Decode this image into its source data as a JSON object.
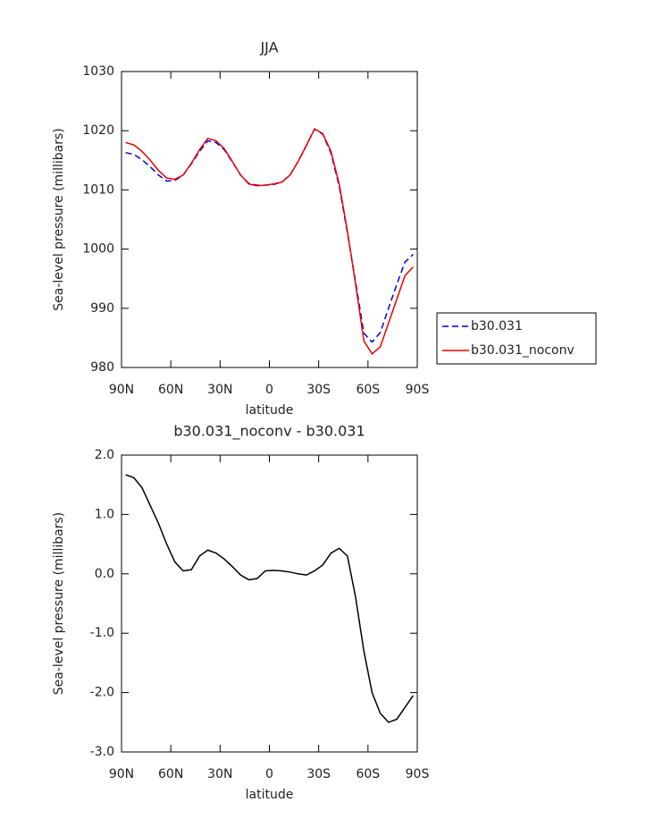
{
  "chart_data": [
    {
      "type": "line",
      "title": "JJA",
      "xlabel": "latitude",
      "ylabel": "Sea-level pressure (millibars)",
      "xlim": [
        90,
        -90
      ],
      "xticks": [
        {
          "value": 90,
          "label": "90N"
        },
        {
          "value": 60,
          "label": "60N"
        },
        {
          "value": 30,
          "label": "30N"
        },
        0,
        {
          "value": -30,
          "label": "30S"
        },
        {
          "value": -60,
          "label": "60S"
        },
        {
          "value": -90,
          "label": "90S"
        }
      ],
      "ylim": [
        980,
        1030
      ],
      "yticks": [
        980,
        990,
        1000,
        1010,
        1020,
        1030
      ],
      "x": [
        87.5,
        82.5,
        77.5,
        72.5,
        67.5,
        62.5,
        57.5,
        52.5,
        47.5,
        42.5,
        37.5,
        32.5,
        27.5,
        22.5,
        17.5,
        12.5,
        7.5,
        2.5,
        -2.5,
        -7.5,
        -12.5,
        -17.5,
        -22.5,
        -27.5,
        -32.5,
        -37.5,
        -42.5,
        -47.5,
        -52.5,
        -57.5,
        -62.5,
        -67.5,
        -72.5,
        -77.5,
        -82.5,
        -87.5
      ],
      "legend": "right",
      "series": [
        {
          "name": "b30.031",
          "color": "#0000dd",
          "dash": true,
          "values": [
            1016.3,
            1016.0,
            1015.1,
            1013.9,
            1012.5,
            1011.5,
            1011.6,
            1012.5,
            1014.4,
            1016.5,
            1018.3,
            1018.0,
            1016.8,
            1014.7,
            1012.5,
            1011.1,
            1010.8,
            1010.8,
            1010.9,
            1011.3,
            1012.5,
            1014.8,
            1017.5,
            1020.3,
            1019.4,
            1016.2,
            1010.6,
            1002.7,
            994.4,
            985.8,
            984.3,
            985.9,
            990.0,
            994.0,
            997.8,
            999.1
          ]
        },
        {
          "name": "b30.031_noconv",
          "color": "#ee0000",
          "dash": false,
          "values": [
            1018.0,
            1017.6,
            1016.5,
            1015.0,
            1013.3,
            1012.0,
            1011.8,
            1012.5,
            1014.5,
            1016.8,
            1018.7,
            1018.3,
            1017.0,
            1014.8,
            1012.5,
            1011.0,
            1010.7,
            1010.8,
            1011.0,
            1011.3,
            1012.5,
            1014.8,
            1017.5,
            1020.3,
            1019.5,
            1016.5,
            1011.0,
            1003.0,
            994.0,
            984.5,
            982.3,
            983.5,
            987.5,
            991.5,
            995.5,
            997.0
          ]
        }
      ]
    },
    {
      "type": "line",
      "title": "b30.031_noconv - b30.031",
      "xlabel": "latitude",
      "ylabel": "Sea-level pressure (millibars)",
      "xlim": [
        90,
        -90
      ],
      "xticks": [
        {
          "value": 90,
          "label": "90N"
        },
        {
          "value": 60,
          "label": "60N"
        },
        {
          "value": 30,
          "label": "30N"
        },
        0,
        {
          "value": -30,
          "label": "30S"
        },
        {
          "value": -60,
          "label": "60S"
        },
        {
          "value": -90,
          "label": "90S"
        }
      ],
      "ylim": [
        -3,
        2
      ],
      "yticks": [
        {
          "value": -3,
          "label": "-3.0"
        },
        {
          "value": -2,
          "label": "-2.0"
        },
        {
          "value": -1,
          "label": "-1.0"
        },
        {
          "value": 0,
          "label": "0.0"
        },
        {
          "value": 1,
          "label": "1.0"
        },
        {
          "value": 2,
          "label": "2.0"
        }
      ],
      "x": [
        87.5,
        82.5,
        77.5,
        72.5,
        67.5,
        62.5,
        57.5,
        52.5,
        47.5,
        42.5,
        37.5,
        32.5,
        27.5,
        22.5,
        17.5,
        12.5,
        7.5,
        2.5,
        -2.5,
        -7.5,
        -12.5,
        -17.5,
        -22.5,
        -27.5,
        -32.5,
        -37.5,
        -42.5,
        -47.5,
        -52.5,
        -57.5,
        -62.5,
        -67.5,
        -72.5,
        -77.5,
        -82.5,
        -87.5
      ],
      "series": [
        {
          "color": "#000000",
          "dash": false,
          "values": [
            1.67,
            1.62,
            1.45,
            1.15,
            0.85,
            0.5,
            0.2,
            0.05,
            0.07,
            0.3,
            0.4,
            0.35,
            0.25,
            0.12,
            -0.02,
            -0.1,
            -0.08,
            0.05,
            0.06,
            0.05,
            0.03,
            0.0,
            -0.02,
            0.05,
            0.15,
            0.35,
            0.43,
            0.3,
            -0.4,
            -1.3,
            -2.0,
            -2.35,
            -2.5,
            -2.45,
            -2.25,
            -2.05
          ]
        }
      ]
    }
  ]
}
